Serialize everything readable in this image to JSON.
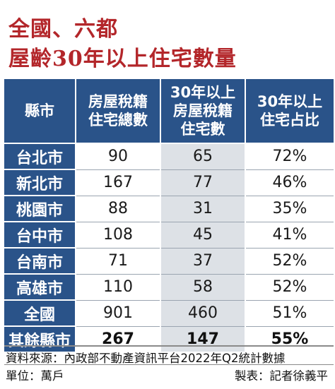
{
  "title": {
    "line1": "全國、六都",
    "line2": "屋齡30年以上住宅數量"
  },
  "colors": {
    "title": "#b3262a",
    "header_bg": "#2a5389",
    "header_text": "#ffffff",
    "shaded_column": "#dde1e6"
  },
  "chart_data": {
    "type": "table",
    "columns": [
      "縣市",
      "房屋稅籍 住宅總數",
      "30年以上 房屋稅籍 住宅數",
      "30年以上 住宅占比"
    ],
    "header_lines": [
      [
        "縣市"
      ],
      [
        "房屋稅籍",
        "住宅總數"
      ],
      [
        "30年以上",
        "房屋稅籍",
        "住宅數"
      ],
      [
        "30年以上",
        "住宅占比"
      ]
    ],
    "rows": [
      {
        "region": "台北市",
        "total": "90",
        "over30": "65",
        "share": "72%"
      },
      {
        "region": "新北市",
        "total": "167",
        "over30": "77",
        "share": "46%"
      },
      {
        "region": "桃園市",
        "total": "88",
        "over30": "31",
        "share": "35%"
      },
      {
        "region": "台中市",
        "total": "108",
        "over30": "45",
        "share": "41%"
      },
      {
        "region": "台南市",
        "total": "71",
        "over30": "37",
        "share": "52%"
      },
      {
        "region": "高雄市",
        "total": "110",
        "over30": "58",
        "share": "52%"
      },
      {
        "region": "全國",
        "total": "901",
        "over30": "460",
        "share": "51%"
      },
      {
        "region": "其餘縣市",
        "total": "267",
        "over30": "147",
        "share": "55%"
      }
    ]
  },
  "footer": {
    "source": "資料來源：內政部不動產資訊平台2022年Q2統計數據",
    "unit": "單位：萬戶",
    "credit": "製表：記者徐義平"
  }
}
